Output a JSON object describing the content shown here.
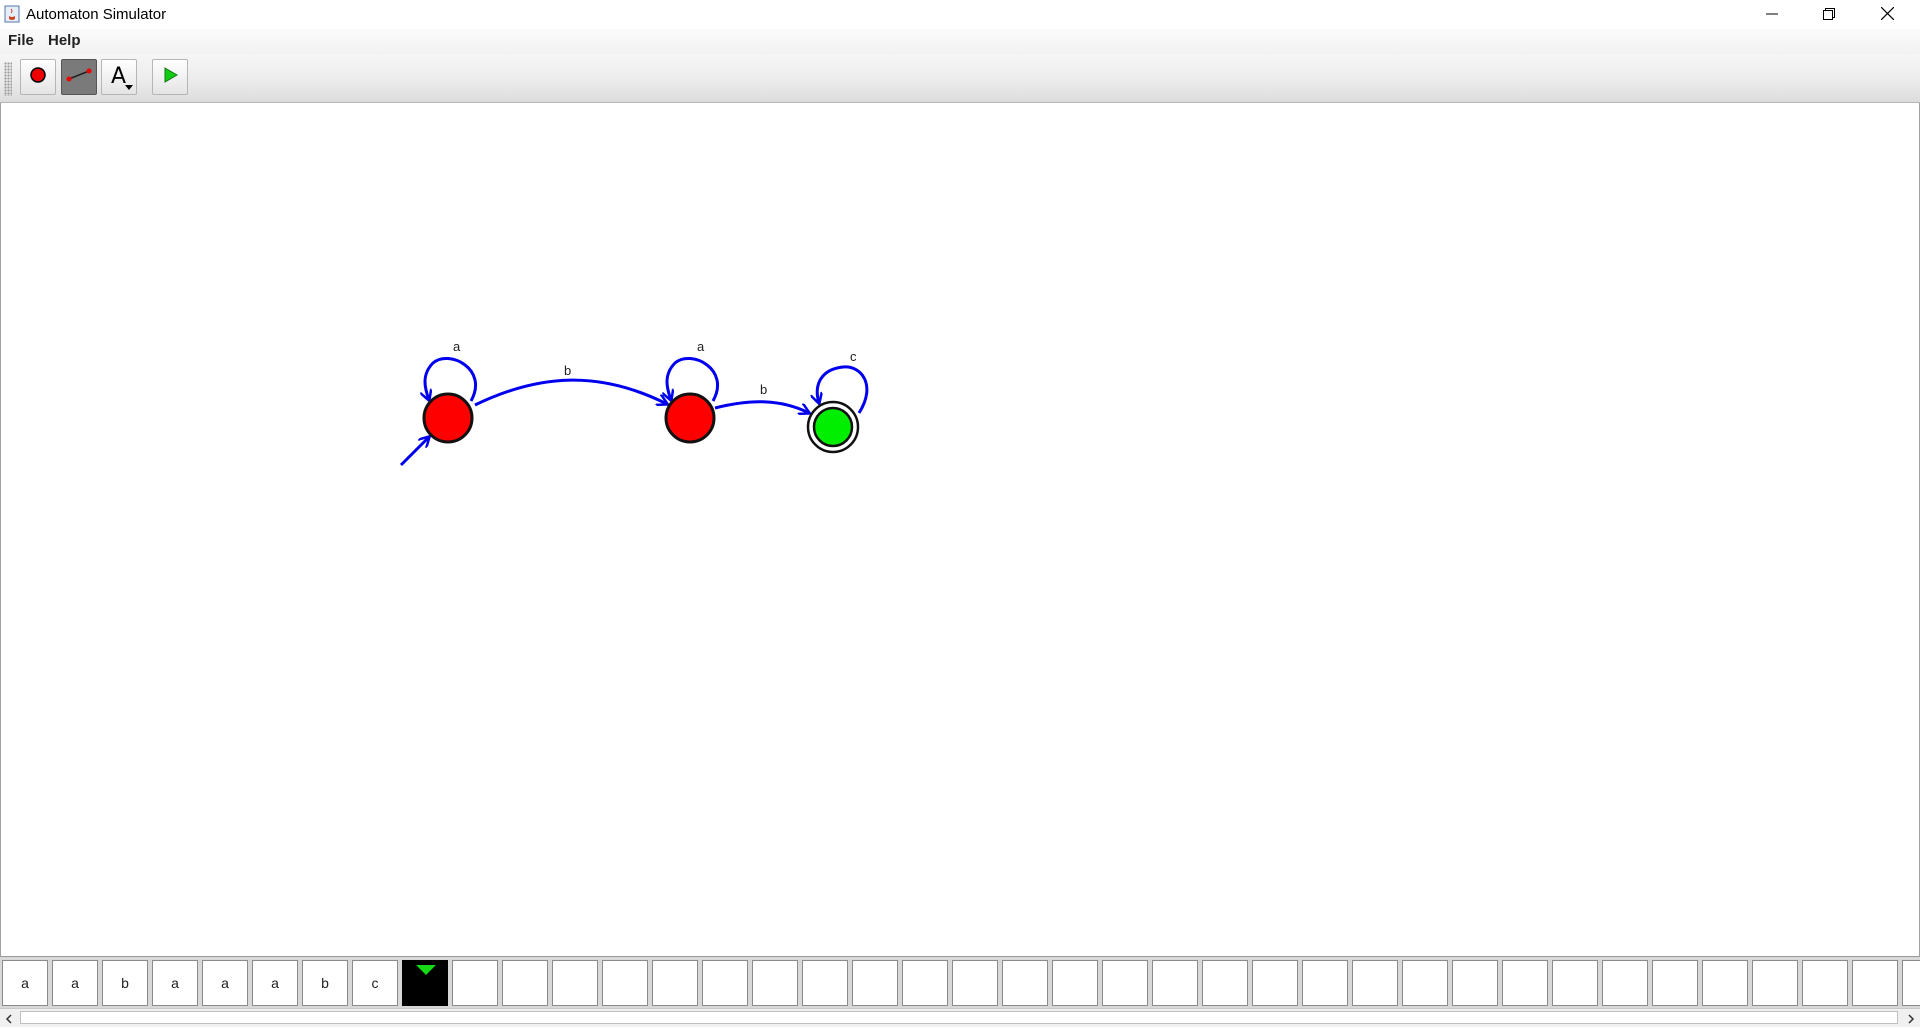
{
  "window": {
    "title": "Automaton Simulator",
    "icons": [
      "java-app-icon",
      "minimize-icon",
      "restore-icon",
      "close-icon"
    ]
  },
  "menu": {
    "items": [
      {
        "label": "File"
      },
      {
        "label": "Help"
      }
    ]
  },
  "toolbar": {
    "tools": [
      {
        "name": "add-state",
        "icon": "red-circle-icon",
        "selected": false
      },
      {
        "name": "add-transition",
        "icon": "transition-line-icon",
        "selected": true
      },
      {
        "name": "add-text",
        "icon": "text-A-icon",
        "glyph": "A",
        "selected": false
      },
      {
        "name": "run",
        "icon": "play-icon",
        "selected": false
      }
    ]
  },
  "automaton": {
    "states": [
      {
        "id": "q0",
        "initial": true,
        "accepting": false,
        "color": "#ff0000"
      },
      {
        "id": "q1",
        "initial": false,
        "accepting": false,
        "color": "#ff0000"
      },
      {
        "id": "q2",
        "initial": false,
        "accepting": true,
        "color": "#00ee00"
      }
    ],
    "transitions": [
      {
        "from": "q0",
        "to": "q0",
        "label": "a"
      },
      {
        "from": "q0",
        "to": "q1",
        "label": "b"
      },
      {
        "from": "q1",
        "to": "q1",
        "label": "a"
      },
      {
        "from": "q1",
        "to": "q2",
        "label": "b"
      },
      {
        "from": "q2",
        "to": "q2",
        "label": "c"
      }
    ],
    "edge_color": "#0000ee"
  },
  "tape": {
    "cells": [
      "a",
      "a",
      "b",
      "a",
      "a",
      "a",
      "b",
      "c",
      "",
      "",
      "",
      "",
      "",
      "",
      "",
      "",
      "",
      "",
      "",
      "",
      "",
      "",
      "",
      "",
      "",
      "",
      "",
      "",
      "",
      "",
      "",
      "",
      "",
      "",
      "",
      "",
      "",
      "",
      ""
    ],
    "head_index": 8,
    "head_color": "#17d817"
  }
}
